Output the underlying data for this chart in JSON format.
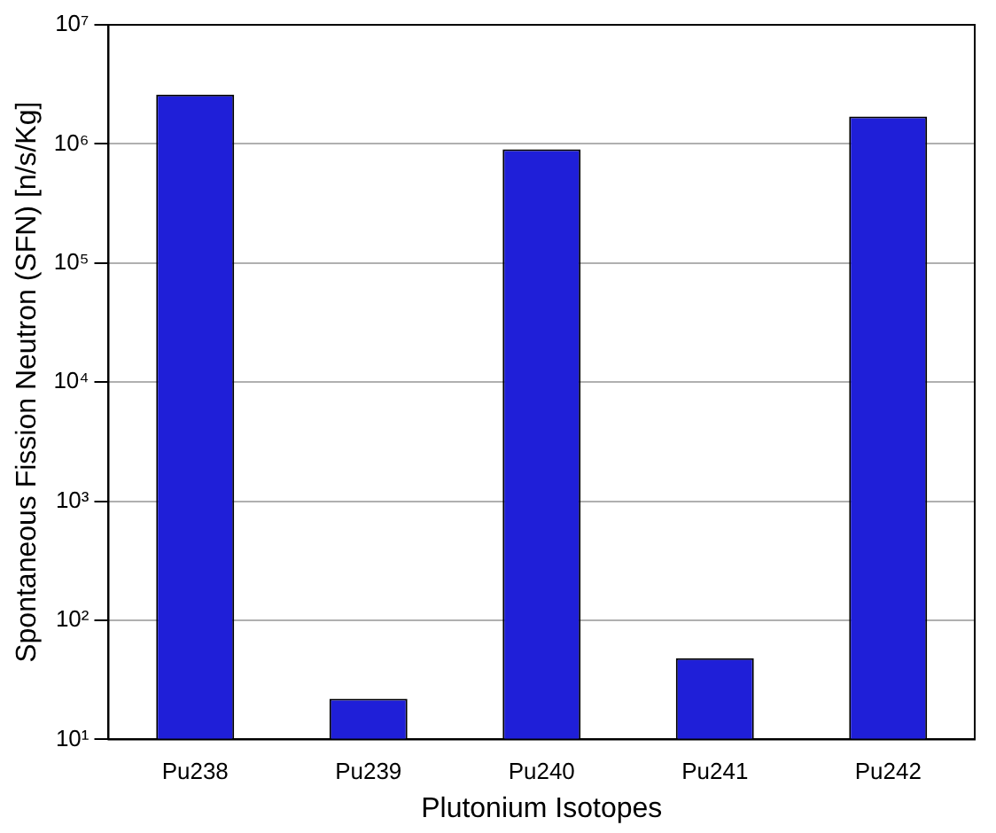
{
  "chart_data": {
    "type": "bar",
    "xlabel": "Plutonium Isotopes",
    "ylabel": "Spontaneous Fission Neutron (SFN) [n/s/Kg]",
    "categories": [
      "Pu238",
      "Pu239",
      "Pu240",
      "Pu241",
      "Pu242"
    ],
    "values": [
      2600000,
      22,
      900000,
      48,
      1700000
    ],
    "color": "#1f1fd8",
    "log": true,
    "grid": "y",
    "ylim": [
      10,
      10000000
    ],
    "yticks": [
      {
        "value": 10,
        "label": "10¹"
      },
      {
        "value": 100,
        "label": "10²"
      },
      {
        "value": 1000,
        "label": "10³"
      },
      {
        "value": 10000,
        "label": "10⁴"
      },
      {
        "value": 100000,
        "label": "10⁵"
      },
      {
        "value": 1000000,
        "label": "10⁶"
      },
      {
        "value": 10000000,
        "label": "10⁷"
      }
    ]
  }
}
